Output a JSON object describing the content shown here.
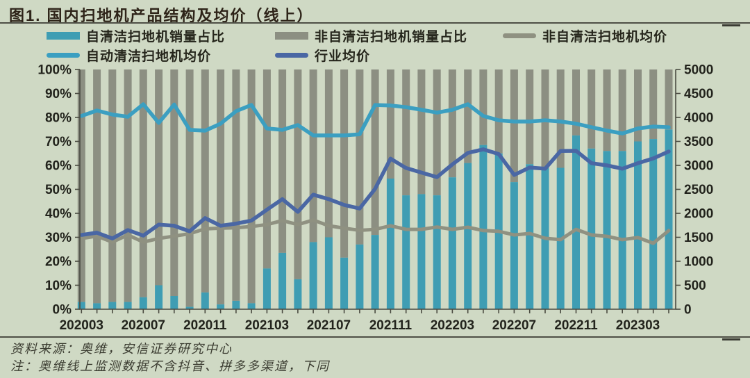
{
  "page": {
    "title": "图1. 国内扫地机产品结构及均价（线上）",
    "footer": {
      "source": "资料来源：奥维，安信证券研究中心",
      "note": "注：奥维线上监测数据不含抖音、拼多多渠道，下同"
    },
    "colors": {
      "background": "#CFD9C4",
      "rule": "#4E4F45",
      "axis": "#4A4B41",
      "label_text": "#22231C",
      "title_text": "#2E2419",
      "footer_text": "#3B3C31"
    }
  },
  "chart_data": {
    "type": "bar+line",
    "title": "图1. 国内扫地机产品结构及均价（线上）",
    "bars_stacked_to_100_percent": true,
    "grid": "off",
    "legend_position": "top",
    "categories": [
      "202003",
      "202004",
      "202005",
      "202006",
      "202007",
      "202008",
      "202009",
      "202010",
      "202011",
      "202012",
      "202101",
      "202102",
      "202103",
      "202104",
      "202105",
      "202106",
      "202107",
      "202108",
      "202109",
      "202110",
      "202111",
      "202112",
      "202201",
      "202202",
      "202203",
      "202204",
      "202205",
      "202206",
      "202207",
      "202208",
      "202209",
      "202210",
      "202211",
      "202212",
      "202301",
      "202302",
      "202303",
      "202304",
      "202305"
    ],
    "x_tick_labels": [
      "202003",
      "202007",
      "202011",
      "202103",
      "202107",
      "202111",
      "202203",
      "202207",
      "202211",
      "202303"
    ],
    "left_axis": {
      "unit": "%",
      "min": 0,
      "max": 100,
      "step": 10
    },
    "right_axis": {
      "unit": "",
      "min": 0,
      "max": 5000,
      "step": 500
    },
    "series": [
      {
        "name": "自清洁扫地机销量占比",
        "type": "bar",
        "axis": "left",
        "color": "#3F9DB3",
        "values": [
          3,
          2.5,
          3,
          3,
          5,
          10,
          5.5,
          1,
          7,
          2,
          3.5,
          2.5,
          17,
          23.5,
          12.5,
          28,
          30,
          21.5,
          27,
          31,
          54.5,
          47.5,
          48,
          47.5,
          55,
          61,
          68.5,
          65,
          53,
          60.5,
          59,
          59,
          72.5,
          67,
          66,
          66,
          70,
          71,
          75
        ]
      },
      {
        "name": "非自清洁扫地机销量占比",
        "type": "bar",
        "axis": "left",
        "color": "#8C8F82",
        "values": [
          97,
          97.5,
          97,
          97,
          95,
          90,
          94.5,
          99,
          93,
          98,
          96.5,
          97.5,
          83,
          76.5,
          87.5,
          72,
          70,
          78.5,
          73,
          69,
          45.5,
          52.5,
          52,
          52.5,
          45,
          39,
          31.5,
          35,
          47,
          39.5,
          41,
          41,
          27.5,
          33,
          34,
          34,
          30,
          29,
          25
        ]
      },
      {
        "name": "非自清洁扫地机均价",
        "type": "line",
        "axis": "right",
        "color": "#8F9181",
        "values": [
          1475,
          1525,
          1400,
          1550,
          1400,
          1475,
          1525,
          1575,
          1675,
          1690,
          1700,
          1725,
          1765,
          1850,
          1765,
          1860,
          1740,
          1690,
          1645,
          1665,
          1740,
          1665,
          1665,
          1715,
          1665,
          1710,
          1640,
          1625,
          1550,
          1580,
          1480,
          1450,
          1665,
          1550,
          1520,
          1450,
          1495,
          1375,
          1640
        ]
      },
      {
        "name": "自动清洁扫地机均价",
        "type": "line",
        "axis": "right",
        "color": "#3B9FC1",
        "values": [
          4030,
          4145,
          4060,
          4015,
          4275,
          3885,
          4270,
          3740,
          3725,
          3870,
          4130,
          4260,
          3770,
          3740,
          3840,
          3625,
          3625,
          3625,
          3650,
          4260,
          4250,
          4215,
          4160,
          4100,
          4160,
          4275,
          4030,
          3940,
          3915,
          3915,
          3940,
          3915,
          3870,
          3795,
          3725,
          3665,
          3770,
          3810,
          3795
        ]
      },
      {
        "name": "行业均价",
        "type": "line",
        "axis": "right",
        "color": "#4A67A4",
        "values": [
          1550,
          1595,
          1475,
          1650,
          1535,
          1765,
          1740,
          1625,
          1900,
          1740,
          1785,
          1850,
          2075,
          2295,
          2030,
          2390,
          2295,
          2175,
          2100,
          2510,
          3140,
          2945,
          2850,
          2755,
          3020,
          3260,
          3335,
          3235,
          2800,
          2955,
          2930,
          3300,
          3305,
          3045,
          3000,
          2930,
          3045,
          3145,
          3290
        ]
      }
    ],
    "legend": {
      "rows": [
        [
          {
            "series": 0,
            "swatch": "bar"
          },
          {
            "series": 1,
            "swatch": "bar"
          },
          {
            "series": 2,
            "swatch": "line"
          }
        ],
        [
          {
            "series": 3,
            "swatch": "line"
          },
          {
            "series": 4,
            "swatch": "line"
          }
        ]
      ]
    }
  }
}
